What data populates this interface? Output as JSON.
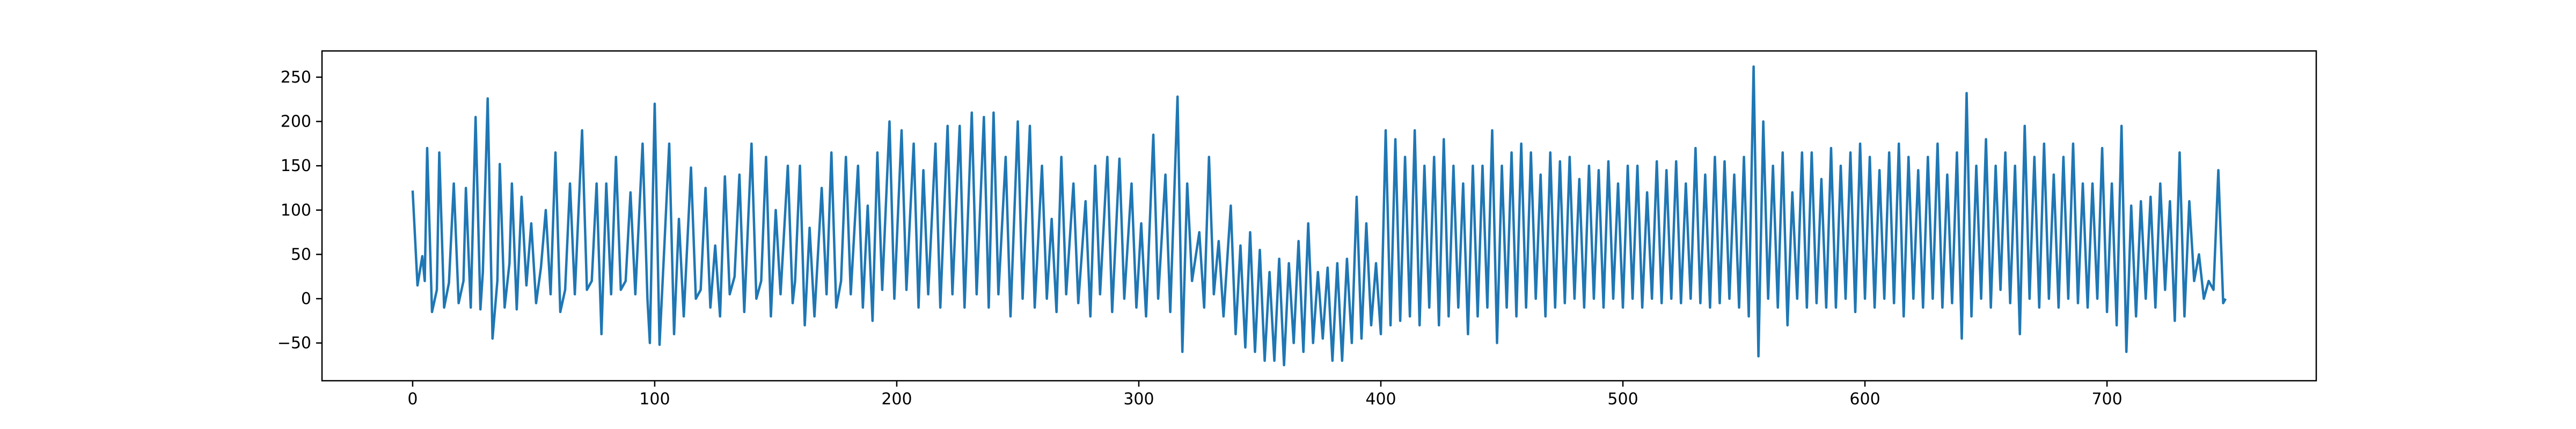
{
  "chart_data": {
    "type": "line",
    "color": "#1f77b4",
    "xlim": [
      -37.45,
      786.45
    ],
    "ylim": [
      -92.6,
      279.6
    ],
    "xticks": [
      0,
      100,
      200,
      300,
      400,
      500,
      600,
      700
    ],
    "yticks": [
      {
        "value": -50,
        "label": "−50"
      },
      0,
      50,
      100,
      150,
      200,
      250
    ],
    "x": [
      0,
      2,
      4,
      5,
      6,
      8,
      10,
      11,
      13,
      15,
      17,
      19,
      21,
      22,
      24,
      26,
      28,
      29,
      31,
      33,
      35,
      36,
      38,
      40,
      41,
      43,
      45,
      47,
      49,
      51,
      53,
      55,
      57,
      59,
      61,
      63,
      65,
      67,
      70,
      72,
      74,
      76,
      78,
      80,
      82,
      84,
      86,
      88,
      90,
      92,
      95,
      97,
      98,
      100,
      102,
      104,
      106,
      108,
      110,
      112,
      115,
      117,
      119,
      121,
      123,
      125,
      127,
      129,
      131,
      133,
      135,
      137,
      140,
      142,
      144,
      146,
      148,
      150,
      152,
      155,
      157,
      158,
      160,
      162,
      164,
      166,
      169,
      171,
      173,
      175,
      177,
      179,
      181,
      184,
      186,
      188,
      190,
      192,
      194,
      197,
      199,
      202,
      204,
      207,
      209,
      211,
      213,
      216,
      218,
      221,
      223,
      226,
      228,
      231,
      233,
      236,
      238,
      240,
      242,
      245,
      247,
      250,
      252,
      255,
      257,
      260,
      262,
      264,
      266,
      268,
      270,
      273,
      275,
      278,
      280,
      282,
      284,
      287,
      289,
      292,
      294,
      297,
      299,
      301,
      303,
      306,
      308,
      311,
      313,
      316,
      318,
      320,
      322,
      325,
      327,
      329,
      331,
      333,
      335,
      338,
      340,
      342,
      344,
      346,
      348,
      350,
      352,
      354,
      356,
      358,
      360,
      362,
      364,
      366,
      368,
      370,
      372,
      374,
      376,
      378,
      380,
      382,
      384,
      386,
      388,
      390,
      392,
      394,
      396,
      398,
      400,
      402,
      404,
      406,
      408,
      410,
      412,
      414,
      416,
      418,
      420,
      422,
      424,
      426,
      428,
      430,
      432,
      434,
      436,
      438,
      440,
      442,
      444,
      446,
      448,
      450,
      452,
      454,
      456,
      458,
      460,
      462,
      464,
      466,
      468,
      470,
      472,
      474,
      476,
      478,
      480,
      482,
      484,
      486,
      488,
      490,
      492,
      494,
      496,
      498,
      500,
      502,
      504,
      506,
      508,
      510,
      512,
      514,
      516,
      518,
      520,
      522,
      524,
      526,
      528,
      530,
      532,
      534,
      536,
      538,
      540,
      542,
      544,
      546,
      548,
      550,
      552,
      554,
      556,
      558,
      560,
      562,
      564,
      566,
      568,
      570,
      572,
      574,
      576,
      578,
      580,
      582,
      584,
      586,
      588,
      590,
      592,
      594,
      596,
      598,
      600,
      602,
      604,
      606,
      608,
      610,
      612,
      614,
      616,
      618,
      620,
      622,
      624,
      626,
      628,
      630,
      632,
      634,
      636,
      638,
      640,
      642,
      644,
      646,
      648,
      650,
      652,
      654,
      656,
      658,
      660,
      662,
      664,
      666,
      668,
      670,
      672,
      674,
      676,
      678,
      680,
      682,
      684,
      686,
      688,
      690,
      692,
      694,
      696,
      698,
      700,
      702,
      704,
      706,
      708,
      710,
      712,
      714,
      716,
      718,
      720,
      722,
      724,
      726,
      728,
      730,
      732,
      734,
      736,
      738,
      740,
      742,
      744,
      746,
      748,
      749
    ],
    "values": [
      122,
      15,
      48,
      20,
      170,
      -15,
      10,
      165,
      -10,
      18,
      130,
      -5,
      20,
      125,
      -10,
      205,
      -12,
      30,
      226,
      -45,
      20,
      152,
      -10,
      40,
      130,
      -12,
      115,
      15,
      85,
      -5,
      35,
      100,
      5,
      165,
      -15,
      10,
      130,
      5,
      190,
      10,
      20,
      130,
      -40,
      130,
      5,
      160,
      10,
      20,
      120,
      5,
      175,
      0,
      -50,
      220,
      -52,
      60,
      175,
      -40,
      90,
      -20,
      148,
      0,
      10,
      125,
      -10,
      60,
      -20,
      138,
      5,
      25,
      140,
      -15,
      175,
      0,
      20,
      160,
      -20,
      100,
      5,
      150,
      -5,
      20,
      150,
      -30,
      80,
      -20,
      125,
      5,
      165,
      -10,
      20,
      160,
      5,
      150,
      -10,
      105,
      -25,
      165,
      10,
      200,
      0,
      190,
      10,
      175,
      -10,
      145,
      5,
      175,
      -10,
      195,
      5,
      195,
      -10,
      210,
      5,
      205,
      -10,
      210,
      5,
      160,
      -20,
      200,
      0,
      195,
      -10,
      150,
      0,
      90,
      -15,
      160,
      5,
      130,
      -5,
      110,
      -20,
      150,
      5,
      160,
      -15,
      158,
      0,
      130,
      -10,
      85,
      -20,
      185,
      0,
      140,
      -15,
      228,
      -60,
      130,
      20,
      75,
      -10,
      160,
      5,
      65,
      -20,
      105,
      -40,
      60,
      -55,
      75,
      -60,
      55,
      -70,
      30,
      -70,
      45,
      -75,
      40,
      -50,
      65,
      -60,
      85,
      -50,
      30,
      -45,
      35,
      -70,
      40,
      -70,
      45,
      -50,
      115,
      -45,
      85,
      -30,
      40,
      -40,
      190,
      -30,
      180,
      -25,
      160,
      -20,
      190,
      -30,
      150,
      -10,
      160,
      -30,
      180,
      -20,
      150,
      -10,
      130,
      -40,
      150,
      -20,
      150,
      -10,
      190,
      -50,
      150,
      -10,
      165,
      -20,
      175,
      -10,
      165,
      0,
      140,
      -20,
      165,
      -10,
      155,
      -5,
      160,
      0,
      135,
      -10,
      150,
      0,
      145,
      -10,
      155,
      0,
      130,
      -10,
      150,
      0,
      150,
      -10,
      120,
      0,
      155,
      -5,
      145,
      0,
      155,
      -5,
      130,
      0,
      170,
      -5,
      140,
      -10,
      160,
      -5,
      155,
      0,
      140,
      -10,
      160,
      -20,
      262,
      -65,
      200,
      0,
      150,
      -10,
      165,
      -30,
      120,
      0,
      165,
      -10,
      165,
      -5,
      135,
      -10,
      170,
      -10,
      150,
      0,
      165,
      -15,
      175,
      0,
      160,
      -10,
      145,
      0,
      165,
      -5,
      175,
      -20,
      160,
      0,
      145,
      -10,
      160,
      0,
      175,
      -10,
      140,
      -5,
      165,
      -45,
      232,
      -20,
      150,
      0,
      180,
      -10,
      150,
      10,
      165,
      -5,
      150,
      -40,
      195,
      0,
      160,
      -10,
      175,
      0,
      140,
      -10,
      160,
      0,
      175,
      -5,
      130,
      -10,
      130,
      0,
      170,
      -15,
      130,
      -30,
      195,
      -60,
      105,
      -20,
      110,
      0,
      115,
      -10,
      130,
      10,
      110,
      -25,
      165,
      -20,
      110,
      20,
      50,
      0,
      20,
      10,
      145,
      -5,
      0
    ]
  }
}
